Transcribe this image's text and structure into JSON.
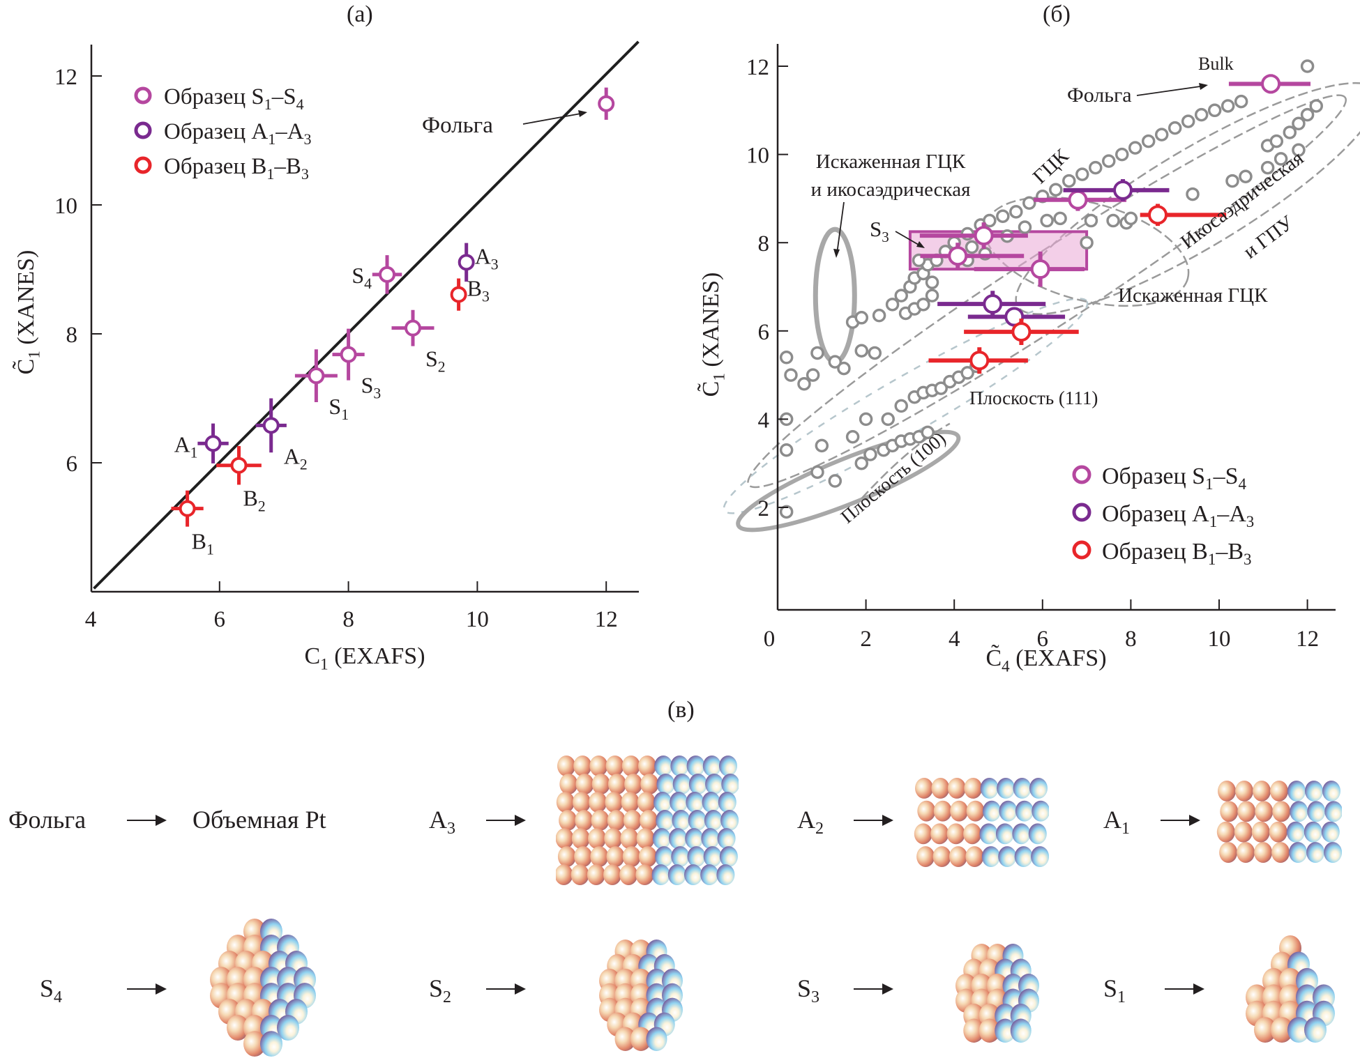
{
  "panels": {
    "a_label": "(а)",
    "b_label": "(б)",
    "c_label": "(в)"
  },
  "chart_data": [
    {
      "id": "a",
      "type": "scatter",
      "title": "(а)",
      "xlabel": "C1 (EXAFS)",
      "xlabel_main": "C",
      "xlabel_sub": "1",
      "xlabel_rest": " (EXAFS)",
      "ylabel": "C̃1 (XANES)",
      "ylabel_main": "C̃",
      "ylabel_sub": "1",
      "ylabel_rest": " (XANES)",
      "xlim": [
        4,
        12.5
      ],
      "ylim": [
        4,
        12.5
      ],
      "xticks": [
        4,
        6,
        8,
        10,
        12
      ],
      "yticks": [
        6,
        8,
        10,
        12
      ],
      "grid": false,
      "legend_position": "top-left",
      "reference_line": {
        "type": "y=x",
        "from": 4,
        "to": 12.5
      },
      "legend": [
        {
          "label": "Образец S",
          "sub1": "1",
          "dash": "–S",
          "sub2": "4",
          "color": "#b5479f"
        },
        {
          "label": "Образец A",
          "sub1": "1",
          "dash": "–A",
          "sub2": "3",
          "color": "#7a2a8f"
        },
        {
          "label": "Образец B",
          "sub1": "1",
          "dash": "–B",
          "sub2": "3",
          "color": "#e8252a"
        }
      ],
      "series": [
        {
          "name": "Образец S1–S4",
          "color": "#b5479f",
          "points": [
            {
              "label": "S",
              "sub": "1",
              "x": 7.5,
              "y": 7.35,
              "xerr": 0.33,
              "yerr": 0.41,
              "label_pos": "below-right"
            },
            {
              "label": "S",
              "sub": "2",
              "x": 9.0,
              "y": 8.09,
              "xerr": 0.33,
              "yerr": 0.28,
              "label_pos": "below-right"
            },
            {
              "label": "S",
              "sub": "3",
              "x": 8.0,
              "y": 7.68,
              "xerr": 0.25,
              "yerr": 0.4,
              "label_pos": "below-right"
            },
            {
              "label": "S",
              "sub": "4",
              "x": 8.6,
              "y": 8.92,
              "xerr": 0.23,
              "yerr": 0.3,
              "label_pos": "left"
            },
            {
              "label": "",
              "sub": "",
              "x": 12.0,
              "y": 11.57,
              "xerr": 0.06,
              "yerr": 0.25,
              "label_pos": "none"
            }
          ]
        },
        {
          "name": "Образец A1–A3",
          "color": "#7a2a8f",
          "points": [
            {
              "label": "A",
              "sub": "1",
              "x": 5.9,
              "y": 6.3,
              "xerr": 0.24,
              "yerr": 0.31,
              "label_pos": "left"
            },
            {
              "label": "A",
              "sub": "2",
              "x": 6.8,
              "y": 6.58,
              "xerr": 0.24,
              "yerr": 0.42,
              "label_pos": "below-right"
            },
            {
              "label": "A",
              "sub": "3",
              "x": 9.83,
              "y": 9.11,
              "xerr": 0.05,
              "yerr": 0.3,
              "label_pos": "right"
            }
          ]
        },
        {
          "name": "Образец B1–B3",
          "color": "#e8252a",
          "points": [
            {
              "label": "B",
              "sub": "1",
              "x": 5.5,
              "y": 5.29,
              "xerr": 0.25,
              "yerr": 0.28,
              "label_pos": "below"
            },
            {
              "label": "B",
              "sub": "2",
              "x": 6.3,
              "y": 5.96,
              "xerr": 0.35,
              "yerr": 0.3,
              "label_pos": "below"
            },
            {
              "label": "B",
              "sub": "3",
              "x": 9.71,
              "y": 8.61,
              "xerr": 0.03,
              "yerr": 0.25,
              "label_pos": "right"
            }
          ]
        }
      ],
      "annotations": [
        {
          "text": "Фольга",
          "target_x": 12.0,
          "target_y": 11.57,
          "kind": "arrow"
        }
      ]
    },
    {
      "id": "b",
      "type": "scatter",
      "title": "(б)",
      "xlabel": "C̃4 (EXAFS)",
      "xlabel_main": "C̃",
      "xlabel_sub": "4",
      "xlabel_rest": " (EXAFS)",
      "ylabel": "C̃1 (XANES)",
      "ylabel_main": "C̃",
      "ylabel_sub": "1",
      "ylabel_rest": " (XANES)",
      "xlim": [
        0,
        12.5
      ],
      "ylim": [
        -0.3,
        12.5
      ],
      "xticks": [
        0,
        2,
        4,
        6,
        8,
        10,
        12
      ],
      "yticks": [
        2,
        4,
        6,
        8,
        10,
        12
      ],
      "grid": false,
      "legend_position": "bottom-right",
      "legend": [
        {
          "label": "Образец S",
          "sub1": "1",
          "dash": "–S",
          "sub2": "4",
          "color": "#b5479f"
        },
        {
          "label": "Образец A",
          "sub1": "1",
          "dash": "–A",
          "sub2": "3",
          "color": "#7a2a8f"
        },
        {
          "label": "Образец B",
          "sub1": "1",
          "dash": "–B",
          "sub2": "3",
          "color": "#e8252a"
        }
      ],
      "simulated_color": "#8c8c8c",
      "simulated_points": [
        [
          0.2,
          1.9
        ],
        [
          0.2,
          3.3
        ],
        [
          0.2,
          4.0
        ],
        [
          0.2,
          5.4
        ],
        [
          0.9,
          2.8
        ],
        [
          1.0,
          3.4
        ],
        [
          1.3,
          2.6
        ],
        [
          1.9,
          3.0
        ],
        [
          2.1,
          3.2
        ],
        [
          2.4,
          3.3
        ],
        [
          2.6,
          3.4
        ],
        [
          2.8,
          3.5
        ],
        [
          3.0,
          3.55
        ],
        [
          3.2,
          3.6
        ],
        [
          3.4,
          3.7
        ],
        [
          1.7,
          3.6
        ],
        [
          2.0,
          4.0
        ],
        [
          2.5,
          4.0
        ],
        [
          2.8,
          4.3
        ],
        [
          3.1,
          4.5
        ],
        [
          3.3,
          4.6
        ],
        [
          3.5,
          4.65
        ],
        [
          3.7,
          4.7
        ],
        [
          3.9,
          4.85
        ],
        [
          4.1,
          4.95
        ],
        [
          4.3,
          5.05
        ],
        [
          4.5,
          5.2
        ],
        [
          0.6,
          4.8
        ],
        [
          0.8,
          5.0
        ],
        [
          1.3,
          5.3
        ],
        [
          1.5,
          5.15
        ],
        [
          1.9,
          5.55
        ],
        [
          2.2,
          5.5
        ],
        [
          0.3,
          5.0
        ],
        [
          0.9,
          5.5
        ],
        [
          1.7,
          6.2
        ],
        [
          1.9,
          6.3
        ],
        [
          2.3,
          6.35
        ],
        [
          2.6,
          6.6
        ],
        [
          2.8,
          6.8
        ],
        [
          3.0,
          7.0
        ],
        [
          3.1,
          7.2
        ],
        [
          3.3,
          7.3
        ],
        [
          3.4,
          7.5
        ],
        [
          3.6,
          7.6
        ],
        [
          3.8,
          7.8
        ],
        [
          4.0,
          8.0
        ],
        [
          4.3,
          8.2
        ],
        [
          4.6,
          8.4
        ],
        [
          4.8,
          8.5
        ],
        [
          5.1,
          8.6
        ],
        [
          5.4,
          8.7
        ],
        [
          5.7,
          8.9
        ],
        [
          6.0,
          9.05
        ],
        [
          6.3,
          9.2
        ],
        [
          6.6,
          9.4
        ],
        [
          6.9,
          9.55
        ],
        [
          7.2,
          9.7
        ],
        [
          7.5,
          9.85
        ],
        [
          7.8,
          10.0
        ],
        [
          8.1,
          10.15
        ],
        [
          8.4,
          10.3
        ],
        [
          8.7,
          10.45
        ],
        [
          9.0,
          10.6
        ],
        [
          9.3,
          10.75
        ],
        [
          9.6,
          10.9
        ],
        [
          9.9,
          11.0
        ],
        [
          10.2,
          11.1
        ],
        [
          10.5,
          11.2
        ],
        [
          2.9,
          6.4
        ],
        [
          3.1,
          6.5
        ],
        [
          3.3,
          6.6
        ],
        [
          3.5,
          6.8
        ],
        [
          3.2,
          7.6
        ],
        [
          3.5,
          7.1
        ],
        [
          4.3,
          7.6
        ],
        [
          4.4,
          7.9
        ],
        [
          4.7,
          7.75
        ],
        [
          5.2,
          8.15
        ],
        [
          5.6,
          8.35
        ],
        [
          6.1,
          8.5
        ],
        [
          6.4,
          8.55
        ],
        [
          7.1,
          8.5
        ],
        [
          7.6,
          8.5
        ],
        [
          7.9,
          8.45
        ],
        [
          8.0,
          8.55
        ],
        [
          9.4,
          9.1
        ],
        [
          10.3,
          9.4
        ],
        [
          10.6,
          9.5
        ],
        [
          11.1,
          9.7
        ],
        [
          11.4,
          9.9
        ],
        [
          11.1,
          10.2
        ],
        [
          11.3,
          10.3
        ],
        [
          11.8,
          10.1
        ],
        [
          11.6,
          10.5
        ],
        [
          11.8,
          10.7
        ],
        [
          12.0,
          10.9
        ],
        [
          12.2,
          11.1
        ],
        [
          7.0,
          8.0
        ],
        [
          12.0,
          12.0
        ]
      ],
      "series": [
        {
          "name": "Образец S1–S4",
          "color": "#b5479f",
          "points": [
            {
              "x": 11.17,
              "y": 11.6,
              "xerr_low": 0.95,
              "xerr_high": 0.9,
              "yerr": 0.22
            },
            {
              "x": 6.8,
              "y": 8.97,
              "xerr_low": 1.0,
              "xerr_high": 1.1,
              "yerr": 0.25
            },
            {
              "x": 4.67,
              "y": 8.16,
              "xerr_low": 1.45,
              "xerr_high": 1.0,
              "yerr": 0.3
            },
            {
              "x": 4.08,
              "y": 7.7,
              "xerr_low": 0.85,
              "xerr_high": 1.5,
              "yerr": 0.3
            },
            {
              "x": 5.95,
              "y": 7.4,
              "xerr_low": 1.5,
              "xerr_high": 1.0,
              "yerr": 0.4
            }
          ]
        },
        {
          "name": "Образец A1–A3",
          "color": "#7a2a8f",
          "points": [
            {
              "x": 7.82,
              "y": 9.19,
              "xerr_low": 1.35,
              "xerr_high": 1.05,
              "yerr": 0.25
            },
            {
              "x": 4.87,
              "y": 6.61,
              "xerr_low": 1.25,
              "xerr_high": 1.2,
              "yerr": 0.3
            },
            {
              "x": 5.36,
              "y": 6.32,
              "xerr_low": 1.05,
              "xerr_high": 1.15,
              "yerr": 0.15
            }
          ]
        },
        {
          "name": "Образец B1–B3",
          "color": "#e8252a",
          "points": [
            {
              "x": 8.61,
              "y": 8.63,
              "xerr_low": 0.4,
              "xerr_high": 1.55,
              "yerr": 0.25
            },
            {
              "x": 5.52,
              "y": 5.98,
              "xerr_low": 1.3,
              "xerr_high": 1.3,
              "yerr": 0.3
            },
            {
              "x": 4.57,
              "y": 5.33,
              "xerr_low": 1.15,
              "xerr_high": 1.1,
              "yerr": 0.3
            }
          ]
        }
      ],
      "shaded_box": {
        "x": [
          3.0,
          7.0
        ],
        "y": [
          7.4,
          8.25
        ],
        "color": "#e9a8d6"
      },
      "annotations": [
        {
          "text": "Bulk"
        },
        {
          "text": "Фольга"
        },
        {
          "text_line1": "Искаженная ГЦК",
          "text_line2": "и икосаэдрическая"
        },
        {
          "text": "ГЦК"
        },
        {
          "text": "S",
          "sub": "3"
        },
        {
          "text_line1": "Икосаэдрическая",
          "text_line2": "и ГПУ"
        },
        {
          "text": "Искаженная ГЦК"
        },
        {
          "text": "Плоскость (111)"
        },
        {
          "text": "Плоскость (100)"
        }
      ]
    }
  ],
  "structures": {
    "row1": [
      {
        "label": "Фольга",
        "sub": "",
        "result_text": "Объемная Pt",
        "cluster": "none"
      },
      {
        "label": "A",
        "sub": "3",
        "result_text": "",
        "cluster": "fcc-large"
      },
      {
        "label": "A",
        "sub": "2",
        "result_text": "",
        "cluster": "fcc-medium"
      },
      {
        "label": "A",
        "sub": "1",
        "result_text": "",
        "cluster": "fcc-small"
      }
    ],
    "row2": [
      {
        "label": "S",
        "sub": "4",
        "cluster": "distorted-large"
      },
      {
        "label": "S",
        "sub": "2",
        "cluster": "distorted-medium"
      },
      {
        "label": "S",
        "sub": "3",
        "cluster": "distorted-small"
      },
      {
        "label": "S",
        "sub": "1",
        "cluster": "pyramid"
      }
    ]
  }
}
